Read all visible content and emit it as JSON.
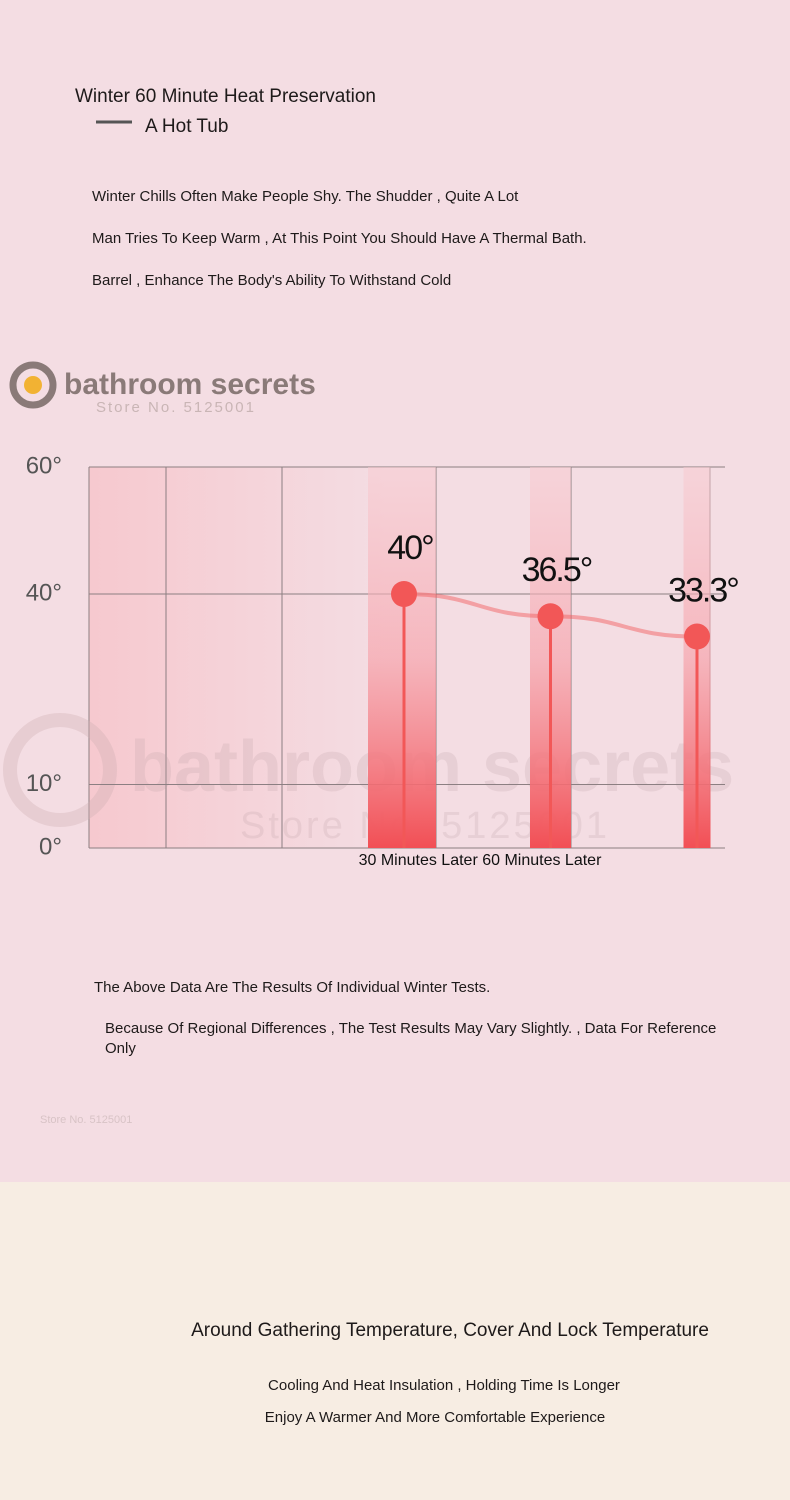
{
  "chart_data": {
    "type": "line",
    "title": "Winter 60 Minute Heat Preservation",
    "xlabel": "30 Minutes Later 60 Minutes Later",
    "categories": [
      null,
      null,
      null
    ],
    "series": [
      {
        "name": "A Hot Tub",
        "color": "#f25757",
        "values": [
          40,
          36.5,
          33.3
        ],
        "value_labels": [
          "40°",
          "36.5°",
          "33.3°"
        ]
      }
    ],
    "ylim": [
      0,
      60
    ],
    "yticks": [
      {
        "value": 0,
        "label": "0°"
      },
      {
        "value": 10,
        "label": "10°"
      },
      {
        "value": 40,
        "label": "40°"
      },
      {
        "value": 60,
        "label": "60°"
      }
    ],
    "grid": true
  },
  "intro": [
    "Winter Chills Often Make People Shy. The Shudder , Quite A Lot",
    "Man Tries To Keep Warm , At This Point You Should Have A Thermal Bath.",
    "Barrel , Enhance The Body's Ability To Withstand Cold"
  ],
  "watermark": {
    "brand": "bathroom secrets",
    "store": "Store No. 5125001"
  },
  "notes": [
    "The Above Data Are The Results Of Individual Winter Tests.",
    "Because Of Regional Differences , The Test Results May Vary Slightly. , Data For Reference Only"
  ],
  "footer": {
    "title": "Around Gathering Temperature, Cover And Lock Temperature",
    "lines": [
      "Cooling And Heat Insulation , Holding Time Is Longer",
      "Enjoy A Warmer And More Comfortable Experience"
    ]
  }
}
